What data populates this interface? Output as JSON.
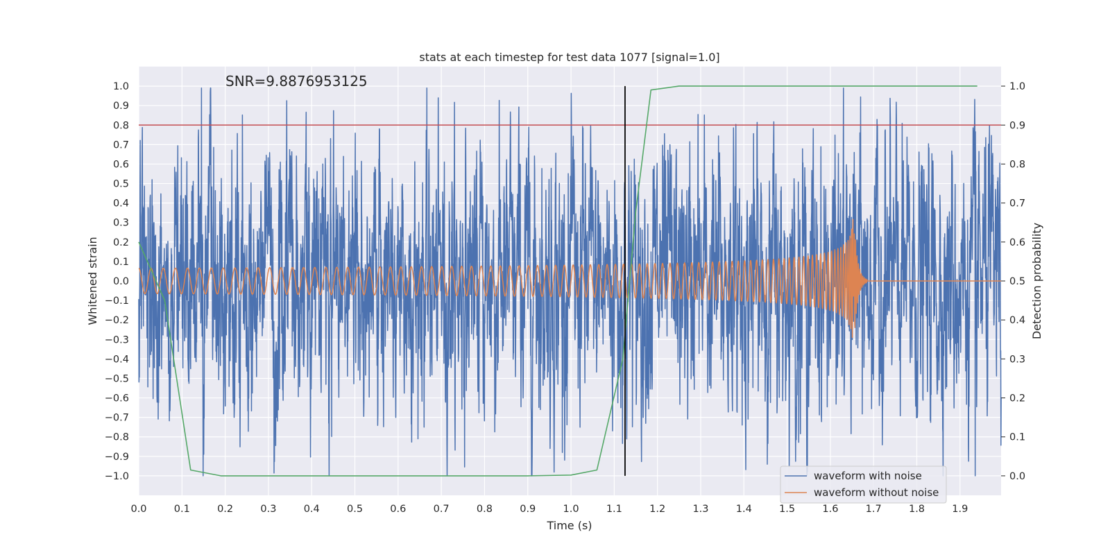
{
  "chart_data": {
    "type": "line",
    "title": "stats at each timestep for test data 1077 [signal=1.0]",
    "annotation": "SNR=9.8876953125",
    "xlabel": "Time (s)",
    "ylabel_left": "Whitened strain",
    "ylabel_right": "Detection probability",
    "xlim": [
      0.0,
      1.995
    ],
    "ylim_left": [
      -1.1,
      1.1
    ],
    "ylim_right": [
      -0.05,
      1.05
    ],
    "x_ticks": [
      "0.0",
      "0.1",
      "0.2",
      "0.3",
      "0.4",
      "0.5",
      "0.6",
      "0.7",
      "0.8",
      "0.9",
      "1.0",
      "1.1",
      "1.2",
      "1.3",
      "1.4",
      "1.5",
      "1.6",
      "1.7",
      "1.8",
      "1.9"
    ],
    "y_ticks_left": [
      "1.0",
      "0.9",
      "0.8",
      "0.7",
      "0.6",
      "0.5",
      "0.4",
      "0.3",
      "0.2",
      "0.1",
      "0.0",
      "−0.1",
      "−0.2",
      "−0.3",
      "−0.4",
      "−0.5",
      "−0.6",
      "−0.7",
      "−0.8",
      "−0.9",
      "−1.0"
    ],
    "y_ticks_right": [
      "1.0",
      "0.9",
      "0.8",
      "0.7",
      "0.6",
      "0.5",
      "0.4",
      "0.3",
      "0.2",
      "0.1",
      "0.0"
    ],
    "grid": true,
    "legend_position": "lower-right",
    "threshold_line": {
      "y": 0.8,
      "axis": "left",
      "color": "#c44e52"
    },
    "event_marker": {
      "x": 1.125,
      "y_from": -1.0,
      "y_to": 1.0,
      "color": "#000000"
    },
    "noise_seed": 1077,
    "series": [
      {
        "name": "waveform with noise",
        "color": "#4c72b0",
        "axis": "left",
        "kind": "noisy_strain",
        "x_range": [
          0.0,
          1.995
        ],
        "sample_rate_hz": 2048,
        "amplitude_range": [
          -1.0,
          0.99
        ],
        "notable_peaks": [
          [
            0.145,
            0.99
          ],
          [
            1.935,
            -1.0
          ],
          [
            0.98,
            -0.88
          ]
        ]
      },
      {
        "name": "waveform without noise",
        "color": "#dd8452",
        "axis": "left",
        "kind": "chirp",
        "x_range": [
          0.0,
          1.995
        ],
        "start_amplitude": 0.065,
        "peak_amplitude": 0.32,
        "start_frequency_hz": 35,
        "merger_time": 1.655,
        "ringdown_end": 1.685
      },
      {
        "name": "",
        "color": "#55a868",
        "axis": "right",
        "kind": "probability",
        "x": [
          0.0,
          0.06,
          0.12,
          0.19,
          0.5,
          0.9,
          1.0,
          1.06,
          1.12,
          1.15,
          1.185,
          1.25,
          1.5,
          1.94
        ],
        "values": [
          0.6,
          0.45,
          0.015,
          0.0,
          0.0,
          0.0,
          0.002,
          0.015,
          0.3,
          0.68,
          0.99,
          1.0,
          1.0,
          1.0
        ]
      }
    ]
  }
}
